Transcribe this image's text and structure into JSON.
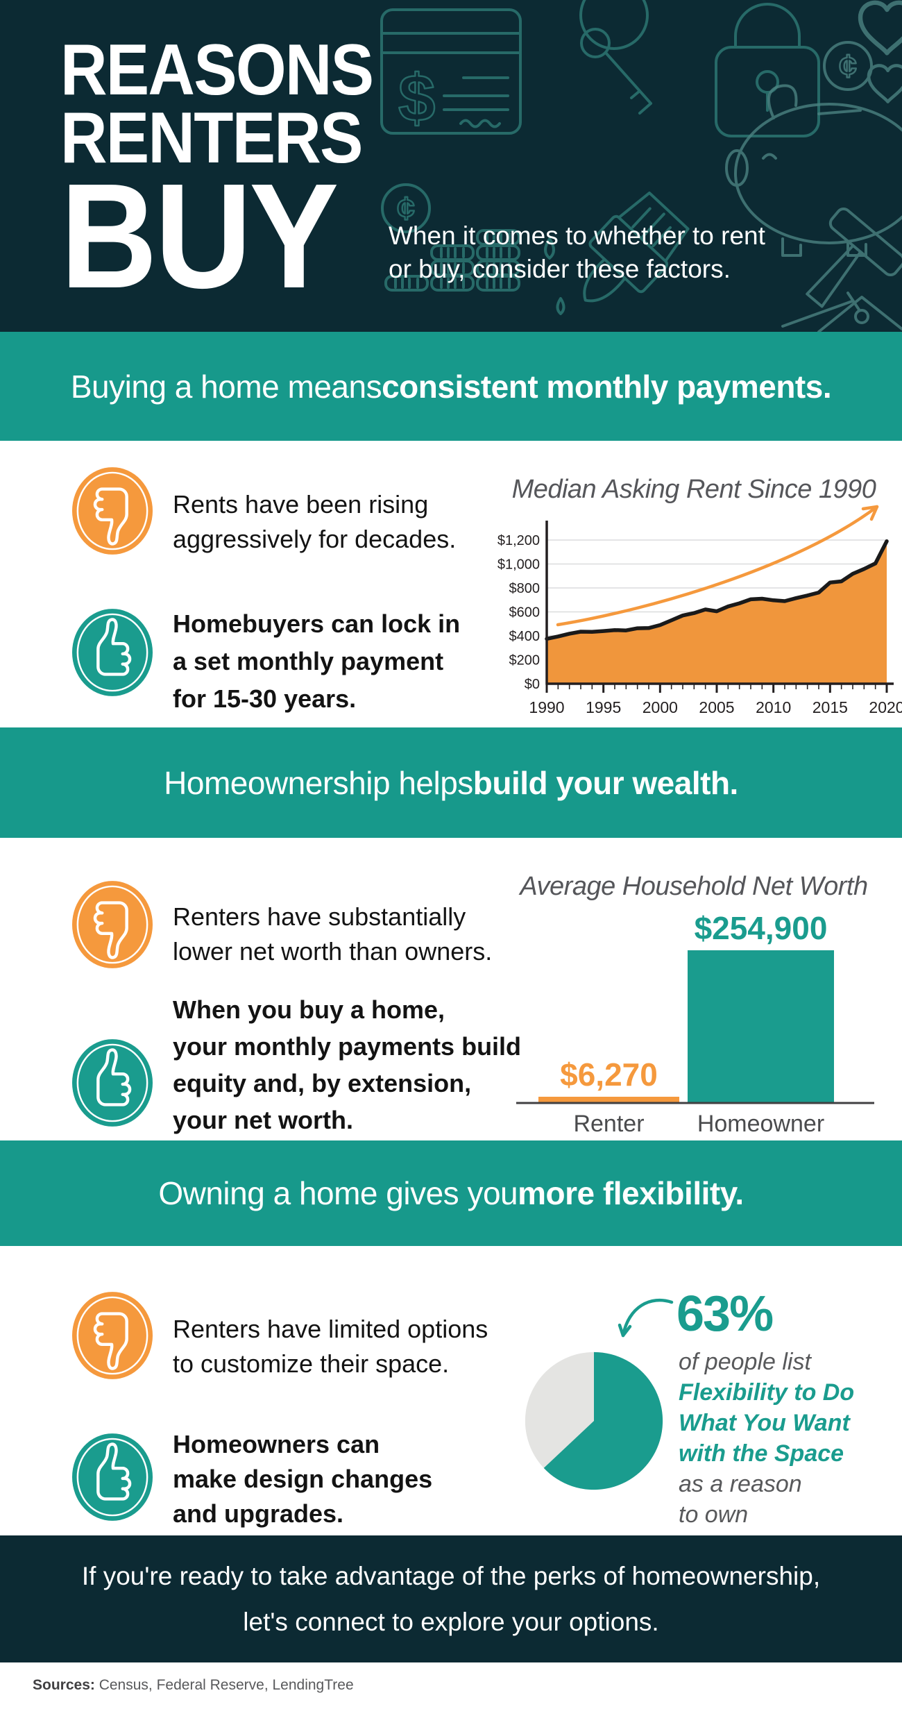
{
  "page": {
    "dark": "#0C2A33",
    "banner_teal": "#17998B",
    "accent_teal": "#1A9C8E",
    "accent_orange": "#F5993D",
    "pie_gray": "#E4E4E2"
  },
  "header": {
    "title_line1": "REASONS",
    "title_line2": "RENTERS",
    "title_line3": "BUY",
    "subtitle": "When it comes to whether to rent\nor buy, consider these factors.",
    "decor_icons": "check, keys, padlock, cent-coin, hearts, piggy-bank, paintbrush, coin-stacks, hammer, nail, house-calendar"
  },
  "sections": [
    {
      "banner_regular": "Buying a home means ",
      "banner_bold": "consistent monthly payments.",
      "con_text": "Rents have been rising\naggressively for decades.",
      "pro_text": "Homebuyers can lock in\na set monthly payment\nfor 15-30 years."
    },
    {
      "banner_regular": "Homeownership helps ",
      "banner_bold": "build your wealth.",
      "con_text": "Renters have substantially\nlower net worth than owners.",
      "pro_text": "When you buy a home,\nyour monthly payments build\nequity and, by extension,\nyour net worth."
    },
    {
      "banner_regular": "Owning a home gives you ",
      "banner_bold": "more flexibility.",
      "con_text": "Renters have limited options\nto customize their space.",
      "pro_text": "Homeowners can\nmake design changes\nand upgrades."
    }
  ],
  "chart_data": [
    {
      "type": "area",
      "title": "Median Asking Rent Since 1990",
      "x": [
        1990,
        1991,
        1992,
        1993,
        1994,
        1995,
        1996,
        1997,
        1998,
        1999,
        2000,
        2001,
        2002,
        2003,
        2004,
        2005,
        2006,
        2007,
        2008,
        2009,
        2010,
        2011,
        2012,
        2013,
        2014,
        2015,
        2016,
        2017,
        2018,
        2019,
        2020
      ],
      "values": [
        375,
        395,
        418,
        435,
        433,
        440,
        448,
        445,
        463,
        465,
        490,
        530,
        570,
        590,
        620,
        605,
        645,
        672,
        705,
        710,
        697,
        690,
        715,
        737,
        762,
        845,
        855,
        918,
        958,
        1005,
        1190
      ],
      "x_tick_labels": [
        "1990",
        "1995",
        "2000",
        "2005",
        "2010",
        "2015",
        "2020"
      ],
      "y_ticks": [
        0,
        200,
        400,
        600,
        800,
        1000,
        1200
      ],
      "y_tick_labels": [
        "$0",
        "$200",
        "$400",
        "$600",
        "$800",
        "$1,000",
        "$1,200"
      ],
      "ylim": [
        0,
        1200
      ],
      "grid": true,
      "legend": "none",
      "area_color": "#F0963C",
      "line_color": "#1A1A1A",
      "trend_arrow_color": "#F5993D"
    },
    {
      "type": "bar",
      "title": "Average Household Net Worth",
      "categories": [
        "Renter",
        "Homeowner"
      ],
      "values": [
        6270,
        254900
      ],
      "value_labels": [
        "$6,270",
        "$254,900"
      ],
      "bar_colors": [
        "#F5993D",
        "#1A9C8E"
      ],
      "label_colors": [
        "#F5993D",
        "#1A9C8E"
      ],
      "grid": false,
      "legend": "none"
    },
    {
      "type": "pie",
      "labels": [
        "list flexibility as a reason to own",
        "other"
      ],
      "values": [
        63,
        37
      ],
      "slice_colors": [
        "#1A9C8E",
        "#E4E4E2"
      ],
      "start_angle": "top, clockwise",
      "callout": {
        "value": "63%",
        "lead": "of people list",
        "emphasis": "Flexibility to Do\nWhat You Want\nwith the Space",
        "tail": "as a reason\nto own"
      }
    }
  ],
  "footer": {
    "message": "If you're ready to take advantage of the perks of homeownership,\nlet's connect to explore your options."
  },
  "sources": {
    "label": "Sources:",
    "text": " Census, Federal Reserve, LendingTree"
  }
}
